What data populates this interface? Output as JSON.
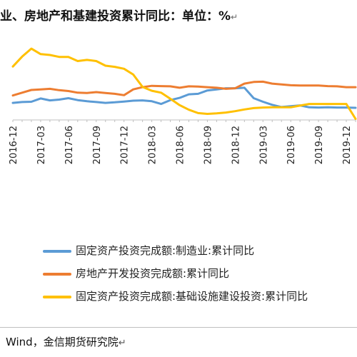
{
  "title_text": "业、房地产和基建投资累计同比：单位：%",
  "title_mark": "↵",
  "source_text": "Wind，金信期货研究院",
  "source_mark": "↵",
  "chart_data": {
    "type": "line",
    "x": [
      "2016-12",
      "2017-01",
      "2017-02",
      "2017-03",
      "2017-04",
      "2017-05",
      "2017-06",
      "2017-07",
      "2017-08",
      "2017-09",
      "2017-10",
      "2017-11",
      "2017-12",
      "2018-01",
      "2018-02",
      "2018-03",
      "2018-04",
      "2018-05",
      "2018-06",
      "2018-07",
      "2018-08",
      "2018-09",
      "2018-10",
      "2018-11",
      "2018-12",
      "2019-01",
      "2019-02",
      "2019-03",
      "2019-04",
      "2019-05",
      "2019-06",
      "2019-07",
      "2019-08",
      "2019-09",
      "2019-10",
      "2019-11",
      "2019-12",
      "2020-01"
    ],
    "tick_labels": [
      "2016-12",
      "2017-03",
      "2017-06",
      "2017-09",
      "2017-12",
      "2018-03",
      "2018-06",
      "2018-09",
      "2018-12",
      "2019-03",
      "2019-06",
      "2019-09",
      "2019-12"
    ],
    "ylim": [
      -2,
      26
    ],
    "grid": false,
    "legend_position": "bottom",
    "series": [
      {
        "name": "固定资产投资完成额:制造业:累计同比",
        "color": "#5b9bd5",
        "values": [
          4.2,
          4.5,
          4.6,
          5.8,
          5.1,
          5.4,
          5.9,
          5.2,
          4.8,
          4.5,
          4.2,
          4.4,
          4.7,
          5.0,
          5.1,
          4.8,
          3.8,
          5.2,
          6.0,
          7.3,
          7.5,
          8.7,
          9.1,
          9.5,
          9.5,
          9.7,
          5.9,
          4.6,
          3.5,
          2.7,
          3.0,
          3.3,
          2.6,
          2.5,
          2.6,
          2.5,
          2.5,
          2.4
        ]
      },
      {
        "name": "房地产开发投资完成额:累计同比",
        "color": "#ed7d31",
        "values": [
          6.9,
          7.9,
          8.9,
          9.1,
          9.3,
          8.8,
          8.5,
          7.9,
          7.8,
          8.1,
          7.8,
          7.5,
          7.0,
          9.1,
          9.9,
          10.4,
          10.3,
          10.2,
          9.7,
          10.2,
          10.1,
          9.9,
          9.7,
          9.3,
          9.5,
          11.2,
          11.8,
          11.9,
          11.2,
          10.9,
          10.6,
          10.5,
          10.5,
          10.5,
          10.3,
          10.2,
          9.9,
          9.9
        ]
      },
      {
        "name": "固定资产投资完成额:基础设施建设投资:累计同比",
        "color": "#ffc000",
        "values": [
          17.4,
          21.0,
          23.9,
          21.9,
          21.6,
          20.9,
          20.9,
          19.4,
          19.8,
          19.4,
          17.7,
          17.3,
          16.6,
          14.5,
          10.0,
          8.6,
          7.9,
          5.7,
          3.4,
          1.7,
          0.5,
          0.2,
          0.4,
          0.7,
          1.2,
          1.8,
          2.3,
          2.5,
          2.6,
          2.6,
          2.6,
          3.2,
          3.8,
          3.8,
          3.8,
          3.8,
          3.8,
          -1.6
        ]
      }
    ]
  }
}
